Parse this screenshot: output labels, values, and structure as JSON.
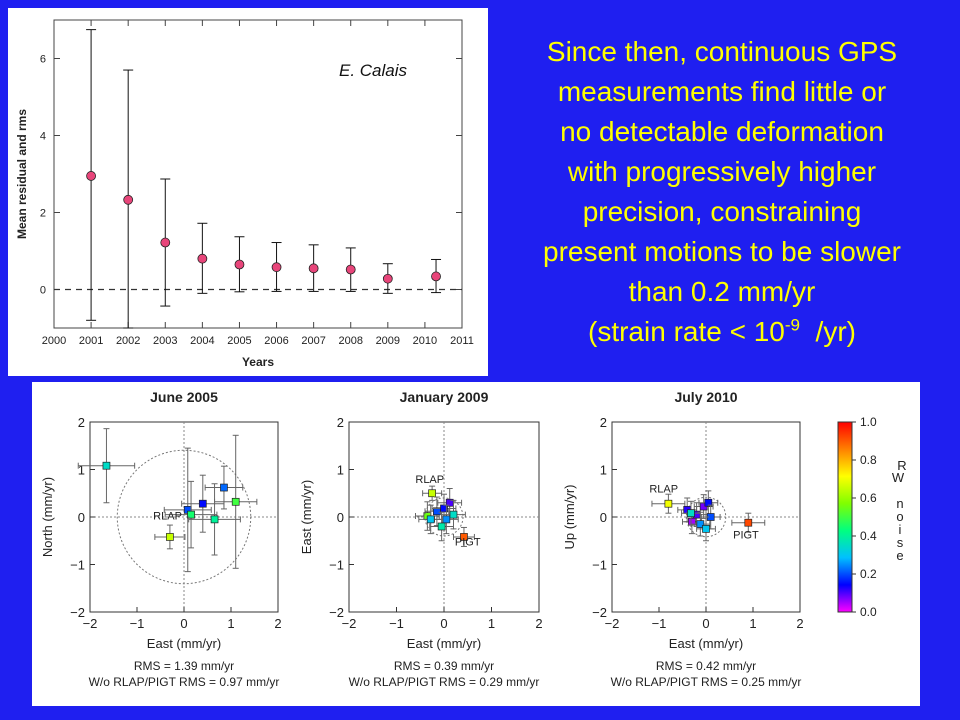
{
  "slide": {
    "lines": [
      "Since then, continuous GPS",
      "measurements find little or",
      "no detectable deformation",
      "with progressively higher",
      "precision, constraining",
      "present motions to be slower",
      "than 0.2 mm/yr"
    ],
    "strain": {
      "prefix": "(strain rate < 10",
      "exponent": "-9",
      "suffix": "  /yr)"
    },
    "text_color": "#ffff00",
    "background_color": "#1f1ff0"
  },
  "chart_data": [
    {
      "type": "scatter",
      "title": "",
      "annotation": "E. Calais",
      "xlabel": "Years",
      "ylabel": "Mean residual and rms",
      "xlim": [
        2000,
        2011
      ],
      "ylim": [
        -1,
        7
      ],
      "xticks": [
        2000,
        2001,
        2002,
        2003,
        2004,
        2005,
        2006,
        2007,
        2008,
        2009,
        2010,
        2011
      ],
      "yticks": [
        0,
        2,
        4,
        6
      ],
      "reference_line": {
        "y": 0,
        "style": "dashed"
      },
      "marker_color": "#e8457a",
      "points": [
        {
          "x": 2001.0,
          "y": 2.95,
          "err_low": -0.8,
          "err_high": 6.75
        },
        {
          "x": 2002.0,
          "y": 2.33,
          "err_low": -1.0,
          "err_high": 5.7
        },
        {
          "x": 2003.0,
          "y": 1.22,
          "err_low": -0.43,
          "err_high": 2.87
        },
        {
          "x": 2004.0,
          "y": 0.8,
          "err_low": -0.1,
          "err_high": 1.72
        },
        {
          "x": 2005.0,
          "y": 0.65,
          "err_low": -0.06,
          "err_high": 1.37
        },
        {
          "x": 2006.0,
          "y": 0.58,
          "err_low": -0.05,
          "err_high": 1.22
        },
        {
          "x": 2007.0,
          "y": 0.55,
          "err_low": -0.05,
          "err_high": 1.16
        },
        {
          "x": 2008.0,
          "y": 0.52,
          "err_low": -0.05,
          "err_high": 1.08
        },
        {
          "x": 2009.0,
          "y": 0.28,
          "err_low": -0.1,
          "err_high": 0.67
        },
        {
          "x": 2010.3,
          "y": 0.34,
          "err_low": -0.08,
          "err_high": 0.78
        }
      ]
    },
    {
      "type": "scatter",
      "title": "June 2005",
      "xlabel": "East (mm/yr)",
      "ylabel": "North (mm/yr)",
      "xlim": [
        -2,
        2
      ],
      "ylim": [
        -2,
        2
      ],
      "ticks": [
        -2,
        -1,
        0,
        1,
        2
      ],
      "circle_radius": 1.42,
      "rms_lines": [
        "RMS = 1.39 mm/yr",
        "W/o RLAP/PIGT RMS = 0.97 mm/yr"
      ],
      "point_labels": [
        {
          "text": "RLAP",
          "x": -0.35,
          "y": -0.05,
          "anchor": "middle"
        }
      ],
      "points": [
        {
          "x": -1.65,
          "y": 1.08,
          "xerr": 0.6,
          "yerr": 0.78,
          "noise": 0.35
        },
        {
          "x": -0.3,
          "y": -0.42,
          "xerr": 0.32,
          "yerr": 0.25,
          "noise": 0.65
        },
        {
          "x": 0.08,
          "y": 0.15,
          "xerr": 0.5,
          "yerr": 1.3,
          "noise": 0.2
        },
        {
          "x": 0.15,
          "y": 0.05,
          "xerr": 0.55,
          "yerr": 0.7,
          "noise": 0.45
        },
        {
          "x": 0.4,
          "y": 0.28,
          "xerr": 0.45,
          "yerr": 0.6,
          "noise": 0.15
        },
        {
          "x": 0.65,
          "y": -0.05,
          "xerr": 0.55,
          "yerr": 0.75,
          "noise": 0.4
        },
        {
          "x": 0.85,
          "y": 0.62,
          "xerr": 0.4,
          "yerr": 0.45,
          "noise": 0.22
        },
        {
          "x": 1.1,
          "y": 0.32,
          "xerr": 0.45,
          "yerr": 1.4,
          "noise": 0.5
        }
      ]
    },
    {
      "type": "scatter",
      "title": "January 2009",
      "xlabel": "East (mm/yr)",
      "ylabel": "East (mm/yr)",
      "xlim": [
        -2,
        2
      ],
      "ylim": [
        -2,
        2
      ],
      "ticks": [
        -2,
        -1,
        0,
        1,
        2
      ],
      "circle_radius": 0.4,
      "rms_lines": [
        "RMS = 0.39 mm/yr",
        "W/o RLAP/PIGT RMS = 0.29 mm/yr"
      ],
      "point_labels": [
        {
          "text": "RLAP",
          "x": -0.3,
          "y": 0.72,
          "anchor": "middle"
        },
        {
          "text": "PIGT",
          "x": 0.5,
          "y": -0.6,
          "anchor": "middle"
        }
      ],
      "points": [
        {
          "x": -0.25,
          "y": 0.5,
          "xerr": 0.2,
          "yerr": 0.15,
          "noise": 0.65
        },
        {
          "x": 0.42,
          "y": -0.42,
          "xerr": 0.22,
          "yerr": 0.2,
          "noise": 0.9
        },
        {
          "x": -0.35,
          "y": 0.02,
          "xerr": 0.25,
          "yerr": 0.3,
          "noise": 0.55
        },
        {
          "x": -0.15,
          "y": 0.12,
          "xerr": 0.25,
          "yerr": 0.3,
          "noise": 0.2
        },
        {
          "x": 0.0,
          "y": 0.18,
          "xerr": 0.25,
          "yerr": 0.3,
          "noise": 0.15
        },
        {
          "x": 0.12,
          "y": 0.3,
          "xerr": 0.25,
          "yerr": 0.3,
          "noise": 0.1
        },
        {
          "x": 0.05,
          "y": -0.05,
          "xerr": 0.25,
          "yerr": 0.3,
          "noise": 0.25
        },
        {
          "x": 0.2,
          "y": 0.05,
          "xerr": 0.25,
          "yerr": 0.3,
          "noise": 0.35
        },
        {
          "x": -0.05,
          "y": -0.2,
          "xerr": 0.25,
          "yerr": 0.3,
          "noise": 0.38
        },
        {
          "x": -0.28,
          "y": -0.05,
          "xerr": 0.25,
          "yerr": 0.3,
          "noise": 0.3
        }
      ]
    },
    {
      "type": "scatter",
      "title": "July 2010",
      "xlabel": "East (mm/yr)",
      "ylabel": "Up (mm/yr)",
      "xlim": [
        -2,
        2
      ],
      "ylim": [
        -2,
        2
      ],
      "ticks": [
        -2,
        -1,
        0,
        1,
        2
      ],
      "circle_radius": 0.42,
      "rms_lines": [
        "RMS = 0.42 mm/yr",
        "W/o RLAP/PIGT RMS = 0.25 mm/yr"
      ],
      "point_labels": [
        {
          "text": "RLAP",
          "x": -0.9,
          "y": 0.52,
          "anchor": "middle"
        },
        {
          "text": "PIGT",
          "x": 0.85,
          "y": -0.45,
          "anchor": "middle"
        }
      ],
      "points": [
        {
          "x": -0.8,
          "y": 0.28,
          "xerr": 0.35,
          "yerr": 0.2,
          "noise": 0.7
        },
        {
          "x": 0.9,
          "y": -0.12,
          "xerr": 0.35,
          "yerr": 0.2,
          "noise": 0.92
        },
        {
          "x": -0.4,
          "y": 0.15,
          "xerr": 0.2,
          "yerr": 0.25,
          "noise": 0.12
        },
        {
          "x": -0.3,
          "y": -0.1,
          "xerr": 0.2,
          "yerr": 0.25,
          "noise": 0.05
        },
        {
          "x": -0.2,
          "y": 0.05,
          "xerr": 0.2,
          "yerr": 0.25,
          "noise": 0.1
        },
        {
          "x": -0.05,
          "y": 0.22,
          "xerr": 0.2,
          "yerr": 0.25,
          "noise": 0.08
        },
        {
          "x": 0.05,
          "y": 0.3,
          "xerr": 0.2,
          "yerr": 0.25,
          "noise": 0.15
        },
        {
          "x": 0.1,
          "y": 0.0,
          "xerr": 0.2,
          "yerr": 0.25,
          "noise": 0.2
        },
        {
          "x": -0.12,
          "y": -0.15,
          "xerr": 0.2,
          "yerr": 0.25,
          "noise": 0.25
        },
        {
          "x": 0.0,
          "y": -0.25,
          "xerr": 0.2,
          "yerr": 0.25,
          "noise": 0.3
        },
        {
          "x": -0.32,
          "y": 0.08,
          "xerr": 0.2,
          "yerr": 0.25,
          "noise": 0.35
        }
      ]
    }
  ],
  "colorbar": {
    "ticks": [
      "0.0",
      "0.2",
      "0.4",
      "0.6",
      "0.8",
      "1.0"
    ],
    "label_chars": [
      "R",
      "W",
      "",
      "n",
      "o",
      "i",
      "s",
      "e"
    ],
    "colors": [
      "#ff00ff",
      "#0000ff",
      "#00c0ff",
      "#00ff80",
      "#80ff00",
      "#ffff00",
      "#ff8000",
      "#ff0000"
    ]
  }
}
